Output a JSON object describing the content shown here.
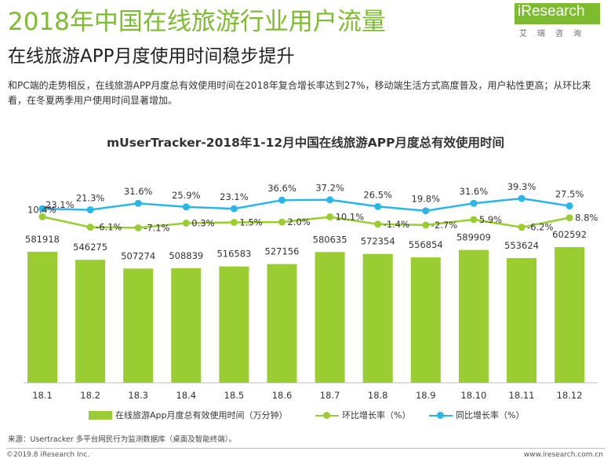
{
  "header": {
    "title": "2018年中国在线旅游行业用户流量",
    "subtitle": "在线旅游APP月度使用时间稳步提升",
    "description": "和PC端的走势相反，在线旅游APP月度总有效使用时间在2018年复合增长率达到27%，移动端生活方式高度普及，用户粘性更高；从环比来看，在冬夏两季用户使用时间显著增加。"
  },
  "logo": {
    "word": "iResearch",
    "cn": "艾瑞咨询",
    "color": "#7dbb2f"
  },
  "chart_data": {
    "type": "bar",
    "title": "mUserTracker-2018年1-12月中国在线旅游APP月度总有效使用时间",
    "categories": [
      "18.1",
      "18.2",
      "18.3",
      "18.4",
      "18.5",
      "18.6",
      "18.7",
      "18.8",
      "18.9",
      "18.10",
      "18.11",
      "18.12"
    ],
    "series": [
      {
        "name": "在线旅游App月度总有效使用时间（万分钟）",
        "kind": "bar",
        "color": "#9acd32",
        "values": [
          581918,
          546275,
          507274,
          508839,
          516583,
          527156,
          580635,
          572354,
          556854,
          589909,
          553624,
          602592
        ]
      },
      {
        "name": "环比增长率（%）",
        "kind": "line",
        "color": "#9acd32",
        "values": [
          10.4,
          -6.1,
          -7.1,
          0.3,
          1.5,
          2.0,
          10.1,
          -1.4,
          -2.7,
          5.9,
          -6.2,
          8.8
        ],
        "labels": [
          "10.4%",
          "-6.1%",
          "-7.1%",
          "0.3%",
          "1.5%",
          "2.0%",
          "10.1%",
          "-1.4%",
          "-2.7%",
          "5.9%",
          "-6.2%",
          "8.8%"
        ]
      },
      {
        "name": "同比增长率（%）",
        "kind": "line",
        "color": "#29b6e8",
        "values": [
          23.1,
          21.3,
          31.6,
          25.9,
          23.1,
          36.6,
          37.2,
          26.5,
          19.8,
          31.6,
          39.3,
          27.5
        ],
        "labels": [
          "23.1%",
          "21.3%",
          "31.6%",
          "25.9%",
          "23.1%",
          "36.6%",
          "37.2%",
          "26.5%",
          "19.8%",
          "31.6%",
          "39.3%",
          "27.5%"
        ]
      }
    ]
  },
  "footer": {
    "source": "来源：Usertracker 多平台网民行为监测数据库（桌面及智能终端）。",
    "copyright": "©2019.8 iResearch Inc.",
    "site": "www.iresearch.com.cn"
  }
}
